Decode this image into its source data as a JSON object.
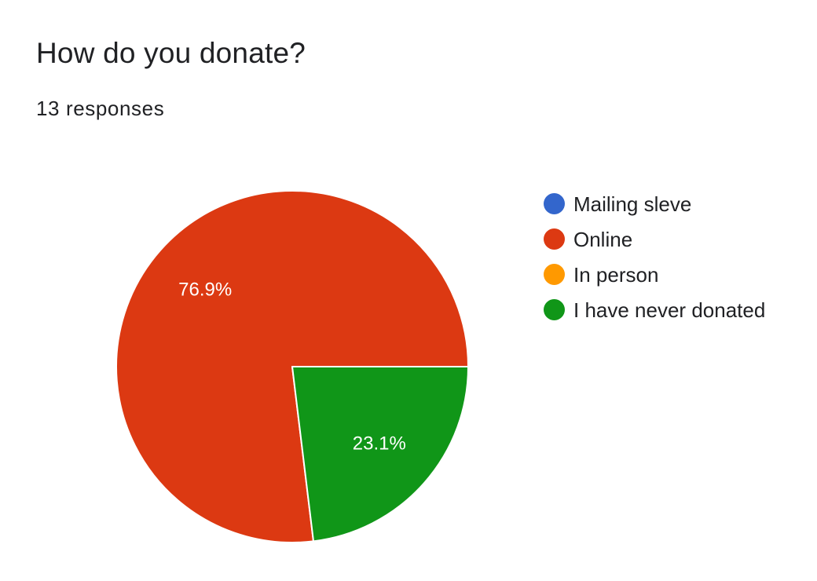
{
  "header": {
    "title": "How do you donate?",
    "subtitle": "13 responses"
  },
  "chart_data": {
    "type": "pie",
    "total_responses": 13,
    "categories": [
      "Mailing sleve",
      "Online",
      "In person",
      "I have never donated"
    ],
    "values": [
      0,
      10,
      0,
      3
    ],
    "percent_labels": [
      "",
      "76.9%",
      "",
      "23.1%"
    ],
    "colors": [
      "#3366cc",
      "#dc3912",
      "#ff9900",
      "#109618"
    ],
    "legend_position": "right"
  }
}
